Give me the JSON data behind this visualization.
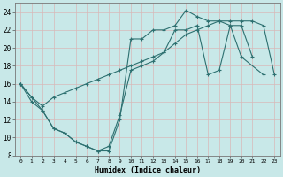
{
  "xlabel": "Humidex (Indice chaleur)",
  "background_color": "#c8e8e8",
  "grid_color": "#d8b8b8",
  "line_color": "#2d7070",
  "xlim": [
    -0.5,
    23.5
  ],
  "ylim": [
    8,
    25
  ],
  "xticks": [
    0,
    1,
    2,
    3,
    4,
    5,
    6,
    7,
    8,
    9,
    10,
    11,
    12,
    13,
    14,
    15,
    16,
    17,
    18,
    19,
    20,
    21,
    22,
    23
  ],
  "yticks": [
    8,
    10,
    12,
    14,
    16,
    18,
    20,
    22,
    24
  ],
  "line1": {
    "x": [
      0,
      1,
      2,
      3,
      4,
      5,
      6,
      7,
      8,
      9,
      10,
      11,
      12,
      13,
      14,
      15,
      16,
      17,
      18,
      19,
      20,
      22
    ],
    "y": [
      16,
      14,
      13,
      11,
      10.5,
      9.5,
      9.0,
      8.5,
      8.5,
      12,
      21,
      21,
      22,
      22,
      22.5,
      24.2,
      23.5,
      23,
      23,
      22.5,
      19,
      17
    ]
  },
  "line2": {
    "x": [
      0,
      1,
      2,
      3,
      4,
      5,
      6,
      7,
      8,
      9,
      10,
      11,
      12,
      13,
      14,
      15,
      16,
      17,
      18,
      19,
      20,
      21,
      22,
      23
    ],
    "y": [
      16,
      14.5,
      13.5,
      14.5,
      15.0,
      15.5,
      16.0,
      16.5,
      17.0,
      17.5,
      18.0,
      18.5,
      19.0,
      19.5,
      20.5,
      21.5,
      22.0,
      22.5,
      23.0,
      23.0,
      23.0,
      23.0,
      22.5,
      17.0
    ]
  },
  "line3": {
    "x": [
      0,
      1,
      2,
      3,
      4,
      5,
      6,
      7,
      8,
      9,
      10,
      11,
      12,
      13,
      14,
      15,
      16,
      17,
      18,
      19,
      20,
      21
    ],
    "y": [
      16,
      14.5,
      13,
      11,
      10.5,
      9.5,
      9.0,
      8.5,
      9.0,
      12.5,
      17.5,
      18,
      18.5,
      19.5,
      22,
      22,
      22.5,
      17,
      17.5,
      22.5,
      22.5,
      19
    ]
  }
}
